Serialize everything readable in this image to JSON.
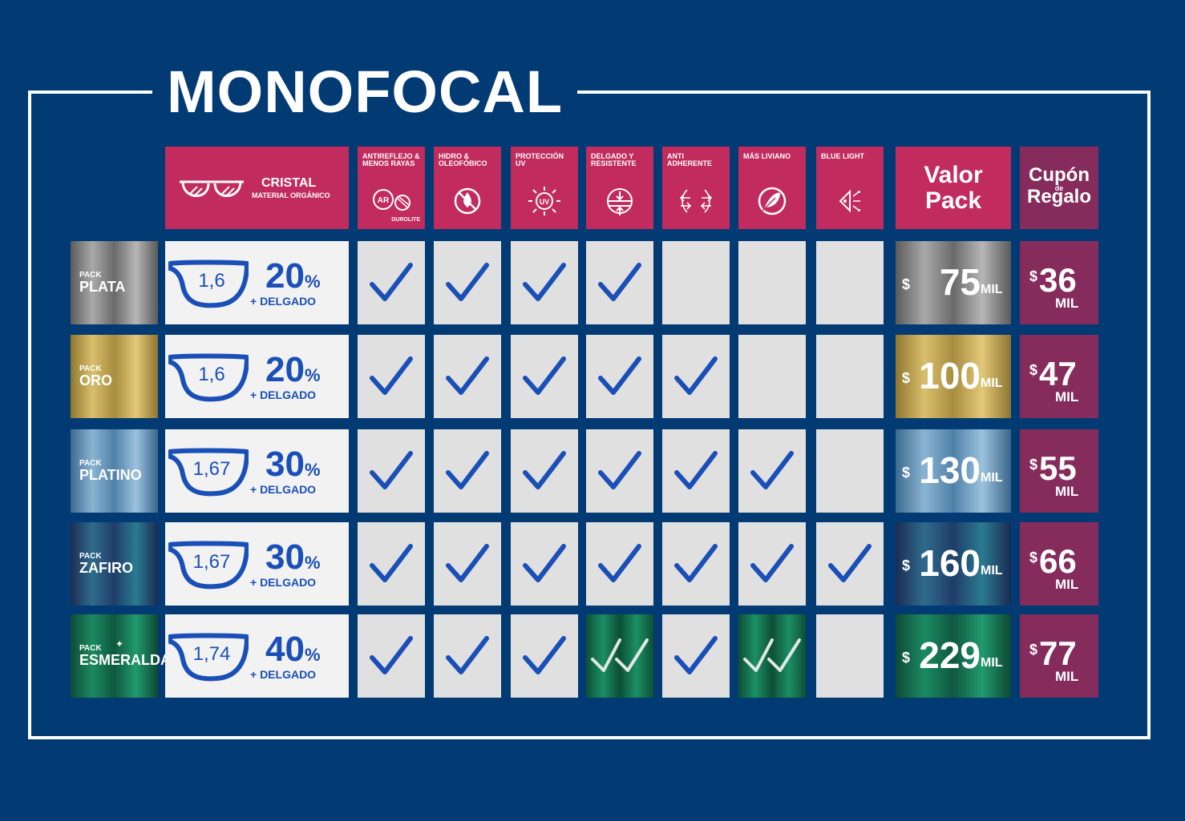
{
  "title": "MONOFOCAL",
  "colors": {
    "background": "#023a74",
    "header": "#c22b5d",
    "cupon": "#862c5d",
    "check": "#1a4fb7"
  },
  "header": {
    "cristal_title": "CRISTAL",
    "cristal_sub": "MATERIAL ORGÁNICO",
    "features": [
      {
        "label": "ANTIREFLEJO & MENOS RAYAS",
        "extra": "DUROLITE",
        "icon": "ar-icon"
      },
      {
        "label": "HIDRO & OLEOFÓBICO",
        "icon": "water-icon"
      },
      {
        "label": "PROTECCIÓN UV",
        "icon": "uv-icon"
      },
      {
        "label": "DELGADO Y RESISTENTE",
        "icon": "thin-resistant-icon"
      },
      {
        "label": "ANTI ADHERENTE",
        "icon": "anti-adherent-icon"
      },
      {
        "label": "MÁS LIVIANO",
        "icon": "feather-icon"
      },
      {
        "label": "BLUE LIGHT",
        "icon": "blue-light-icon"
      }
    ],
    "valor_1": "Valor",
    "valor_2": "Pack",
    "cupon_1": "Cupón",
    "cupon_2": "de",
    "cupon_3": "Regalo"
  },
  "rows": [
    {
      "pack": "PACK",
      "name": "PLATA",
      "index": "1,6",
      "pct": "20",
      "pct_sign": "%",
      "thin": "+ DELGADO",
      "checks": [
        "single",
        "single",
        "single",
        "single",
        "none",
        "none",
        "none"
      ],
      "currency": "$",
      "valor": "75",
      "valor_unit": "MIL",
      "cupon": "36",
      "cupon_unit": "MIL"
    },
    {
      "pack": "PACK",
      "name": "ORO",
      "index": "1,6",
      "pct": "20",
      "pct_sign": "%",
      "thin": "+ DELGADO",
      "checks": [
        "single",
        "single",
        "single",
        "single",
        "single",
        "none",
        "none"
      ],
      "currency": "$",
      "valor": "100",
      "valor_unit": "MIL",
      "cupon": "47",
      "cupon_unit": "MIL"
    },
    {
      "pack": "PACK",
      "name": "PLATINO",
      "index": "1,67",
      "pct": "30",
      "pct_sign": "%",
      "thin": "+ DELGADO",
      "checks": [
        "single",
        "single",
        "single",
        "single",
        "single",
        "single",
        "none"
      ],
      "currency": "$",
      "valor": "130",
      "valor_unit": "MIL",
      "cupon": "55",
      "cupon_unit": "MIL"
    },
    {
      "pack": "PACK",
      "name": "ZAFIRO",
      "index": "1,67",
      "pct": "30",
      "pct_sign": "%",
      "thin": "+ DELGADO",
      "checks": [
        "single",
        "single",
        "single",
        "single",
        "single",
        "single",
        "single"
      ],
      "currency": "$",
      "valor": "160",
      "valor_unit": "MIL",
      "cupon": "66",
      "cupon_unit": "MIL"
    },
    {
      "pack": "PACK",
      "name": "ESMERALDA",
      "index": "1,74",
      "pct": "40",
      "pct_sign": "%",
      "thin": "+ DELGADO",
      "checks": [
        "single",
        "single",
        "single",
        "double",
        "single",
        "double",
        "none"
      ],
      "currency": "$",
      "valor": "229",
      "valor_unit": "MIL",
      "cupon": "77",
      "cupon_unit": "MIL"
    }
  ]
}
